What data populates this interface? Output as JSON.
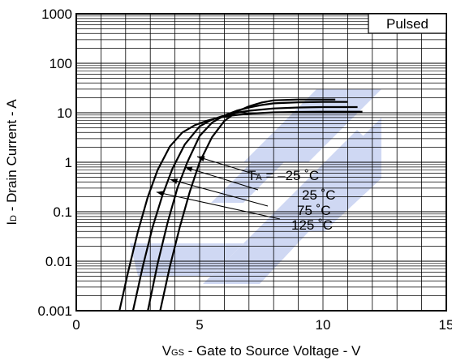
{
  "chart_data": {
    "type": "line",
    "title": "",
    "xlabel": {
      "prefix": "V",
      "sub": "GS",
      "rest": " - Gate to Source Voltage - V"
    },
    "ylabel": {
      "prefix": "I",
      "sub": "D",
      "rest": " - Drain Current - A"
    },
    "x_ticks": [
      "0",
      "5",
      "10",
      "15"
    ],
    "y_ticks": [
      "1000",
      "100",
      "10",
      "1",
      "0.1",
      "0.01",
      "0.001"
    ],
    "xlim": [
      0,
      15
    ],
    "ylim": [
      0.001,
      1000
    ],
    "yscale": "log",
    "grid": true,
    "legend_box": "Pulsed",
    "series_labels": [
      {
        "prefix": "T",
        "sub": "A",
        "rest": " = –25 ˚C"
      },
      {
        "prefix": "",
        "sub": "",
        "rest": "25 ˚C"
      },
      {
        "prefix": "",
        "sub": "",
        "rest": "75 ˚C"
      },
      {
        "prefix": "",
        "sub": "",
        "rest": "125 ˚C"
      }
    ],
    "series": [
      {
        "name": "TA = –25 ˚C",
        "x": [
          3.4,
          3.8,
          4.2,
          4.6,
          5.0,
          5.5,
          6.0,
          6.5,
          7.0,
          7.5,
          8.0,
          9.0,
          10.0,
          10.5
        ],
        "y": [
          0.001,
          0.008,
          0.05,
          0.25,
          1.0,
          3.2,
          6.8,
          10.5,
          13.5,
          16.0,
          17.8,
          18.5,
          18.5,
          18.5
        ]
      },
      {
        "name": "25 ˚C",
        "x": [
          2.9,
          3.3,
          3.7,
          4.1,
          4.5,
          5.0,
          5.5,
          6.0,
          6.5,
          7.0,
          7.5,
          8.0,
          9.0,
          10.0,
          11.0
        ],
        "y": [
          0.001,
          0.009,
          0.06,
          0.3,
          1.0,
          3.4,
          6.3,
          8.8,
          11.0,
          12.8,
          14.3,
          15.5,
          16.3,
          16.6,
          16.6
        ]
      },
      {
        "name": "75 ˚C",
        "x": [
          2.3,
          2.7,
          3.1,
          3.5,
          3.9,
          4.4,
          5.0,
          5.5,
          6.0,
          6.5,
          7.0,
          8.0,
          9.0,
          10.0,
          11.0,
          11.4
        ],
        "y": [
          0.001,
          0.008,
          0.05,
          0.22,
          0.75,
          2.3,
          5.3,
          7.3,
          8.8,
          10.0,
          11.0,
          12.2,
          12.8,
          13.0,
          13.0,
          13.0
        ]
      },
      {
        "name": "125 ˚C",
        "x": [
          1.75,
          2.1,
          2.5,
          2.9,
          3.3,
          3.8,
          4.3,
          4.8,
          5.3,
          5.8,
          6.3,
          7.0,
          8.0,
          9.0,
          10.0,
          11.0,
          11.6
        ],
        "y": [
          0.001,
          0.006,
          0.04,
          0.2,
          0.7,
          2.1,
          4.0,
          5.6,
          6.9,
          8.0,
          8.8,
          9.6,
          10.2,
          10.4,
          10.5,
          10.5,
          10.5
        ]
      }
    ]
  }
}
